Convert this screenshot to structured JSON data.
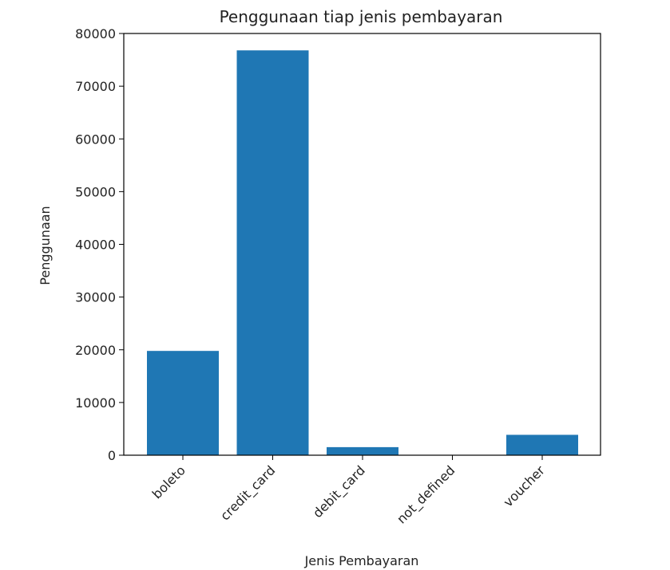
{
  "chart_data": {
    "type": "bar",
    "title": "Penggunaan tiap jenis pembayaran",
    "xlabel": "Jenis Pembayaran",
    "ylabel": "Penggunaan",
    "categories": [
      "boleto",
      "credit_card",
      "debit_card",
      "not_defined",
      "voucher"
    ],
    "values": [
      19784,
      76795,
      1529,
      3,
      3866
    ],
    "ylim": [
      0,
      80000
    ],
    "yticks": [
      0,
      10000,
      20000,
      30000,
      40000,
      50000,
      60000,
      70000,
      80000
    ],
    "grid": false,
    "bar_color": "#1f77b4",
    "x_tick_rotation": "45-degree, right-aligned"
  }
}
